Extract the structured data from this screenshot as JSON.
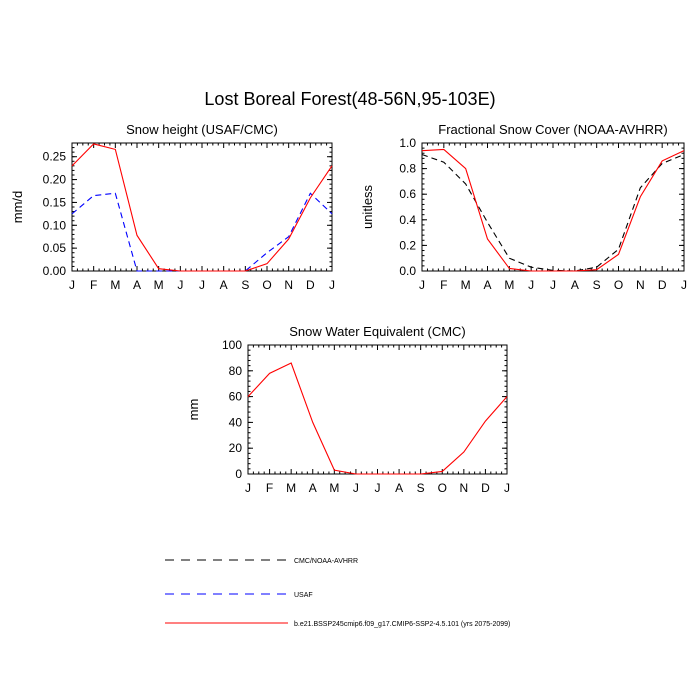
{
  "title": "Lost Boreal Forest(48-56N,95-103E)",
  "legend": [
    {
      "label": "CMC/NOAA-AVHRR",
      "color": "#000000",
      "dash": "dashed"
    },
    {
      "label": "USAF",
      "color": "#0000ff",
      "dash": "dashed"
    },
    {
      "label": "b.e21.BSSP245cmip6.f09_g17.CMIP6-SSP2-4.5.101 (yrs 2075-2099)",
      "color": "#ff0000",
      "dash": "solid"
    }
  ],
  "chart_data": [
    {
      "type": "line",
      "title": "Snow height (USAF/CMC)",
      "xlabel": "",
      "ylabel": "mm/d",
      "categories": [
        "J",
        "F",
        "M",
        "A",
        "M",
        "J",
        "J",
        "A",
        "S",
        "O",
        "N",
        "D",
        "J"
      ],
      "ylim": [
        0,
        0.28
      ],
      "yticks": [
        0,
        0.05,
        0.1,
        0.15,
        0.2,
        0.25
      ],
      "ytick_labels": [
        "0.00",
        "0.05",
        "0.10",
        "0.15",
        "0.20",
        "0.25"
      ],
      "grid": false,
      "series": [
        {
          "name": "CMC/NOAA-AVHRR",
          "color": "#000000",
          "dash": "dashed",
          "values": [
            0,
            0,
            0,
            0,
            0,
            0,
            0,
            0,
            0,
            0,
            0,
            0,
            0
          ]
        },
        {
          "name": "USAF",
          "color": "#0000ff",
          "dash": "dashed",
          "values": [
            0.125,
            0.165,
            0.17,
            0.0,
            0.0,
            0.0,
            0.0,
            0.0,
            0.0,
            0.04,
            0.075,
            0.17,
            0.125
          ]
        },
        {
          "name": "b.e21.BSSP245cmip6.f09_g17.CMIP6-SSP2-4.5.101 (yrs 2075-2099)",
          "color": "#ff0000",
          "dash": "solid",
          "values": [
            0.23,
            0.278,
            0.266,
            0.078,
            0.005,
            0.0,
            0.0,
            0.0,
            0.0,
            0.016,
            0.07,
            0.16,
            0.23
          ]
        }
      ]
    },
    {
      "type": "line",
      "title": "Fractional Snow Cover (NOAA-AVHRR)",
      "xlabel": "",
      "ylabel": "unitless",
      "categories": [
        "J",
        "F",
        "M",
        "A",
        "M",
        "J",
        "J",
        "A",
        "S",
        "O",
        "N",
        "D",
        "J"
      ],
      "ylim": [
        0,
        1.0
      ],
      "yticks": [
        0,
        0.2,
        0.4,
        0.6,
        0.8,
        1.0
      ],
      "ytick_labels": [
        "0.0",
        "0.2",
        "0.4",
        "0.6",
        "0.8",
        "1.0"
      ],
      "grid": false,
      "series": [
        {
          "name": "CMC/NOAA-AVHRR",
          "color": "#000000",
          "dash": "dashed",
          "values": [
            0.91,
            0.85,
            0.68,
            0.38,
            0.1,
            0.03,
            0.005,
            0.0,
            0.03,
            0.17,
            0.65,
            0.84,
            0.91
          ]
        },
        {
          "name": "b.e21.BSSP245cmip6.f09_g17.CMIP6-SSP2-4.5.101 (yrs 2075-2099)",
          "color": "#ff0000",
          "dash": "solid",
          "values": [
            0.94,
            0.95,
            0.8,
            0.25,
            0.02,
            0.0,
            0.0,
            0.0,
            0.01,
            0.13,
            0.58,
            0.86,
            0.94
          ]
        }
      ]
    },
    {
      "type": "line",
      "title": "Snow Water Equivalent (CMC)",
      "xlabel": "",
      "ylabel": "mm",
      "categories": [
        "J",
        "F",
        "M",
        "A",
        "M",
        "J",
        "J",
        "A",
        "S",
        "O",
        "N",
        "D",
        "J"
      ],
      "ylim": [
        0,
        100
      ],
      "yticks": [
        0,
        20,
        40,
        60,
        80,
        100
      ],
      "ytick_labels": [
        "0",
        "20",
        "40",
        "60",
        "80",
        "100"
      ],
      "grid": false,
      "series": [
        {
          "name": "CMC/NOAA-AVHRR",
          "color": "#000000",
          "dash": "dashed",
          "values": [
            0,
            0,
            0,
            0,
            0,
            0,
            0,
            0,
            0,
            0,
            0,
            0,
            0
          ]
        },
        {
          "name": "b.e21.BSSP245cmip6.f09_g17.CMIP6-SSP2-4.5.101 (yrs 2075-2099)",
          "color": "#ff0000",
          "dash": "solid",
          "values": [
            60,
            78,
            86,
            40,
            3,
            0,
            0,
            0,
            0,
            2,
            17,
            41,
            60
          ]
        }
      ]
    }
  ]
}
